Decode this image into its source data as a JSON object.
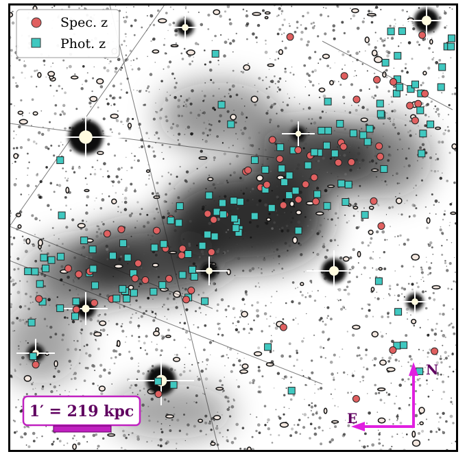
{
  "legend": {
    "items": [
      "Spec. z",
      "Phot. z"
    ]
  },
  "scale_bar": {
    "label": "1′ = 219 kpc"
  },
  "compass": {
    "north": "N",
    "east": "E"
  }
}
